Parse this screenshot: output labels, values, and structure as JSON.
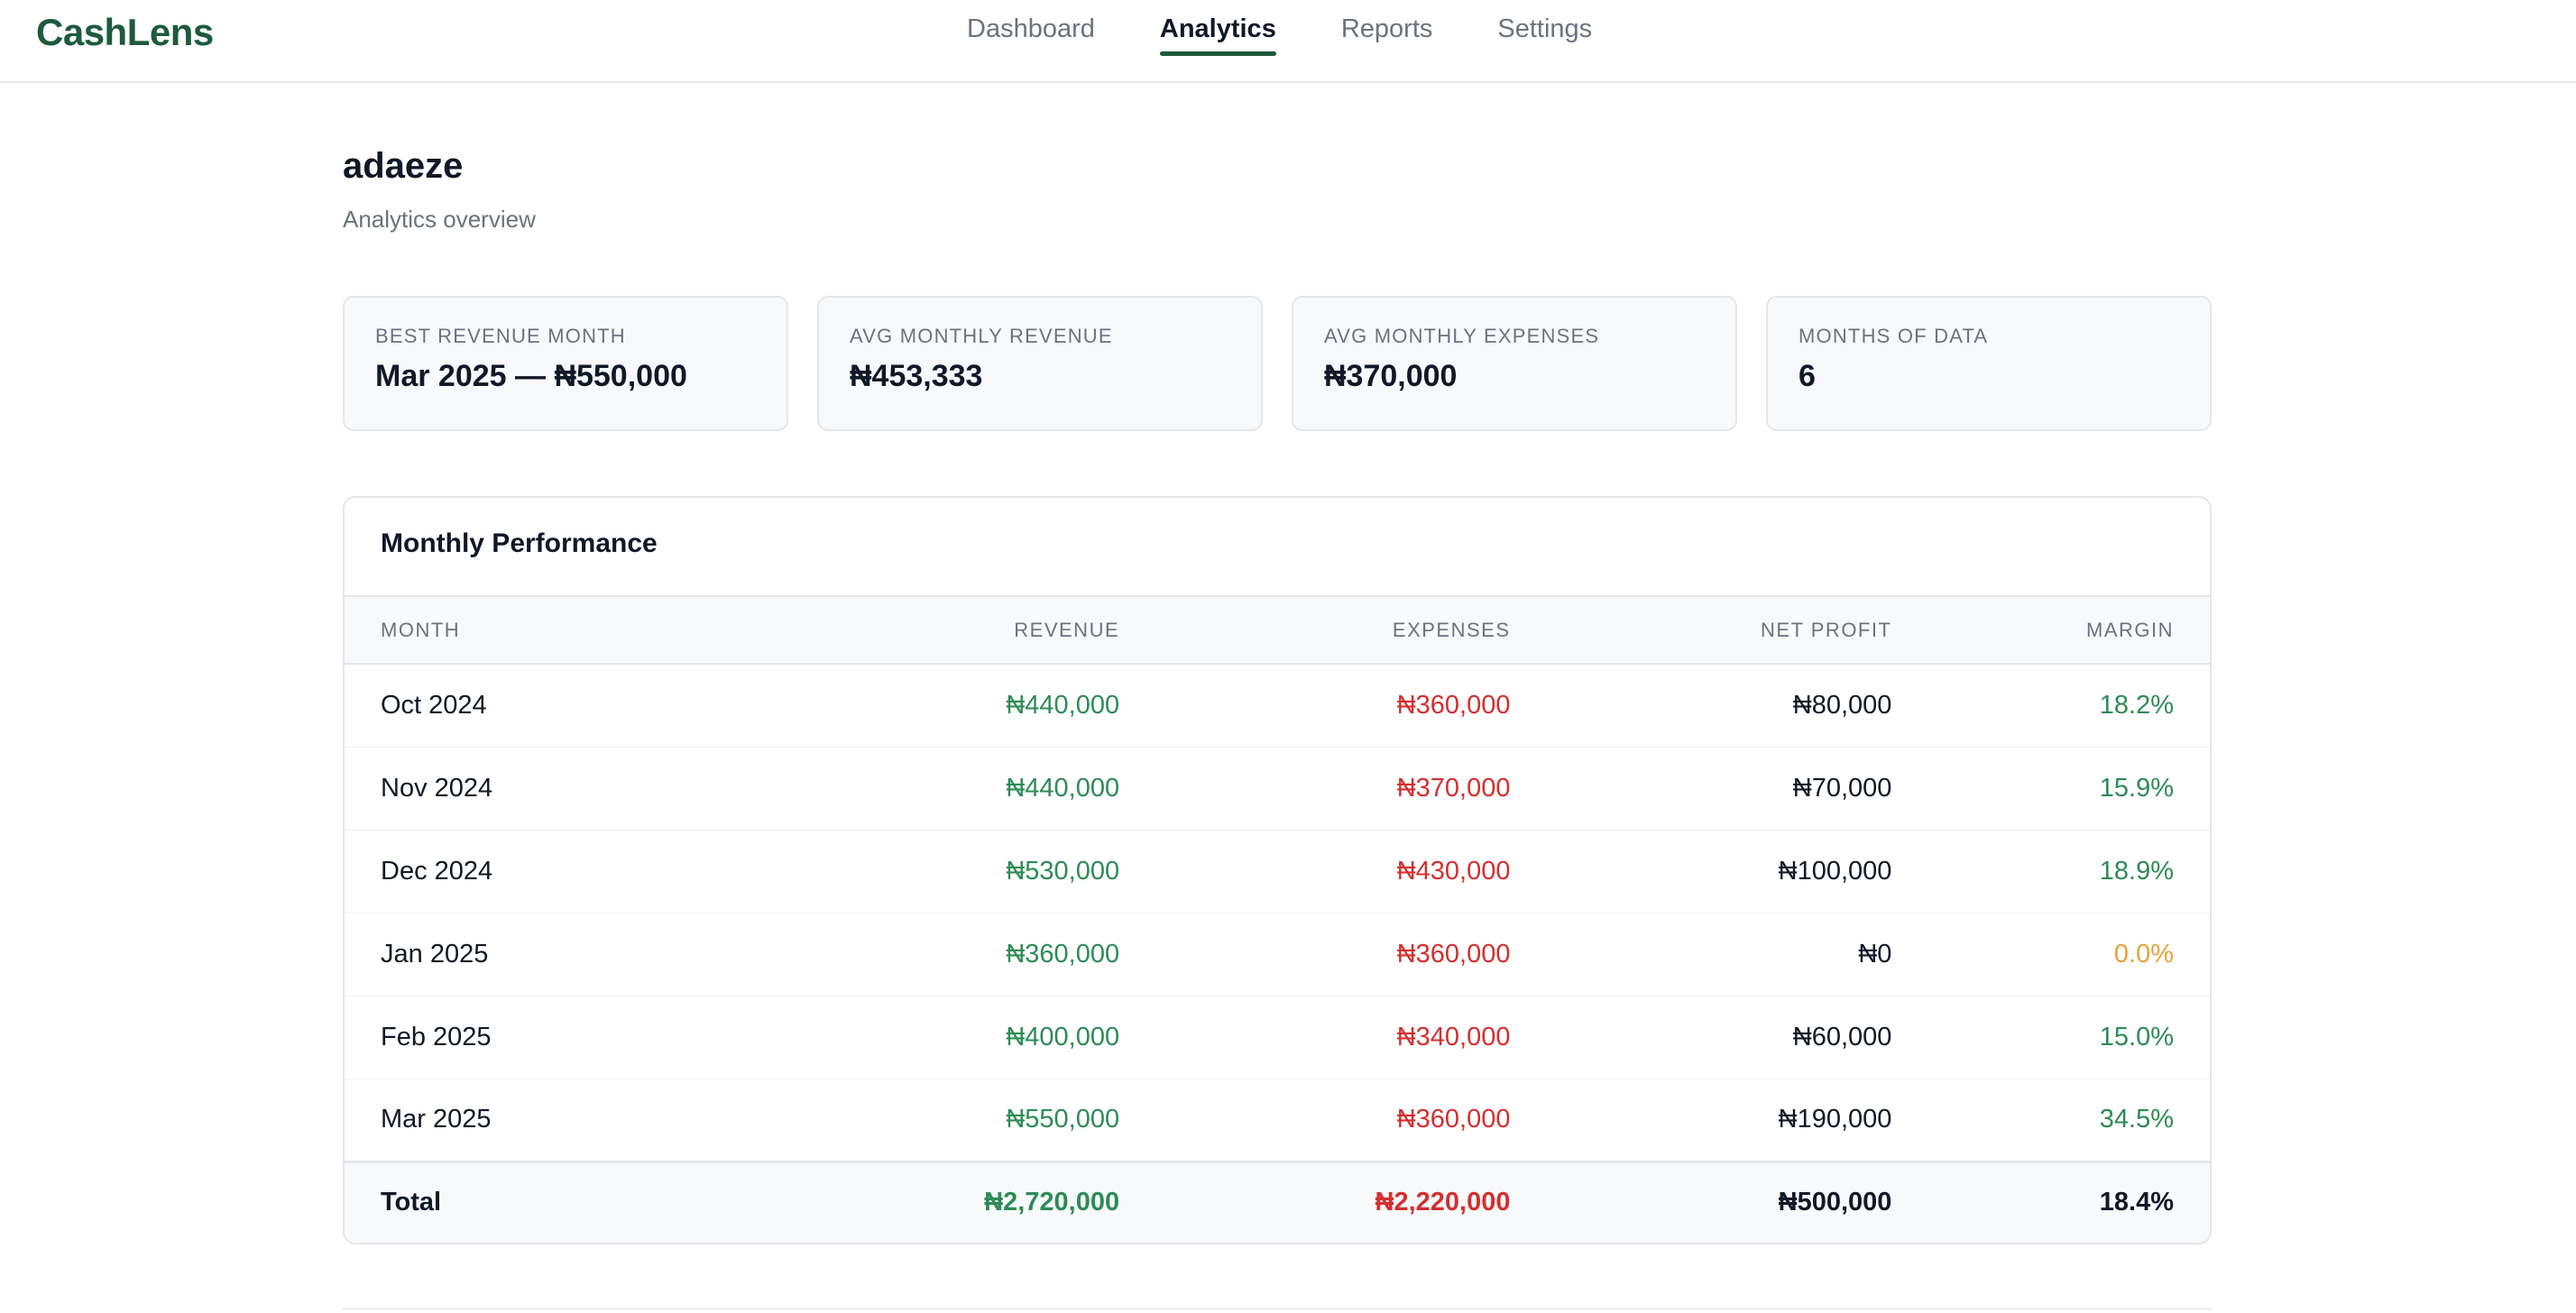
{
  "app": {
    "logo": "CashLens"
  },
  "nav": {
    "items": [
      "Dashboard",
      "Analytics",
      "Reports",
      "Settings"
    ],
    "active": "Analytics"
  },
  "header": {
    "user": "adaeze",
    "subtitle": "Analytics overview"
  },
  "stats": [
    {
      "label": "Best Revenue Month",
      "value": "Mar 2025 — ₦550,000"
    },
    {
      "label": "Avg Monthly Revenue",
      "value": "₦453,333"
    },
    {
      "label": "Avg Monthly Expenses",
      "value": "₦370,000"
    },
    {
      "label": "Months of Data",
      "value": "6"
    }
  ],
  "performance": {
    "title": "Monthly Performance",
    "columns": [
      "Month",
      "Revenue",
      "Expenses",
      "Net Profit",
      "Margin"
    ],
    "rows": [
      [
        "Oct 2024",
        "₦440,000",
        "₦360,000",
        "₦80,000",
        "18.2%"
      ],
      [
        "Nov 2024",
        "₦440,000",
        "₦370,000",
        "₦70,000",
        "15.9%"
      ],
      [
        "Dec 2024",
        "₦530,000",
        "₦430,000",
        "₦100,000",
        "18.9%"
      ],
      [
        "Jan 2025",
        "₦360,000",
        "₦360,000",
        "₦0",
        "0.0%"
      ],
      [
        "Feb 2025",
        "₦400,000",
        "₦340,000",
        "₦60,000",
        "15.0%"
      ],
      [
        "Mar 2025",
        "₦550,000",
        "₦360,000",
        "₦190,000",
        "34.5%"
      ]
    ],
    "total": [
      "Total",
      "₦2,720,000",
      "₦2,220,000",
      "₦500,000",
      "18.4%"
    ]
  },
  "colors": {
    "brand": "#1e5a3d",
    "revenue": "#2e8b57",
    "expense": "#d32f2f",
    "margin_zero": "#e8a23a"
  }
}
